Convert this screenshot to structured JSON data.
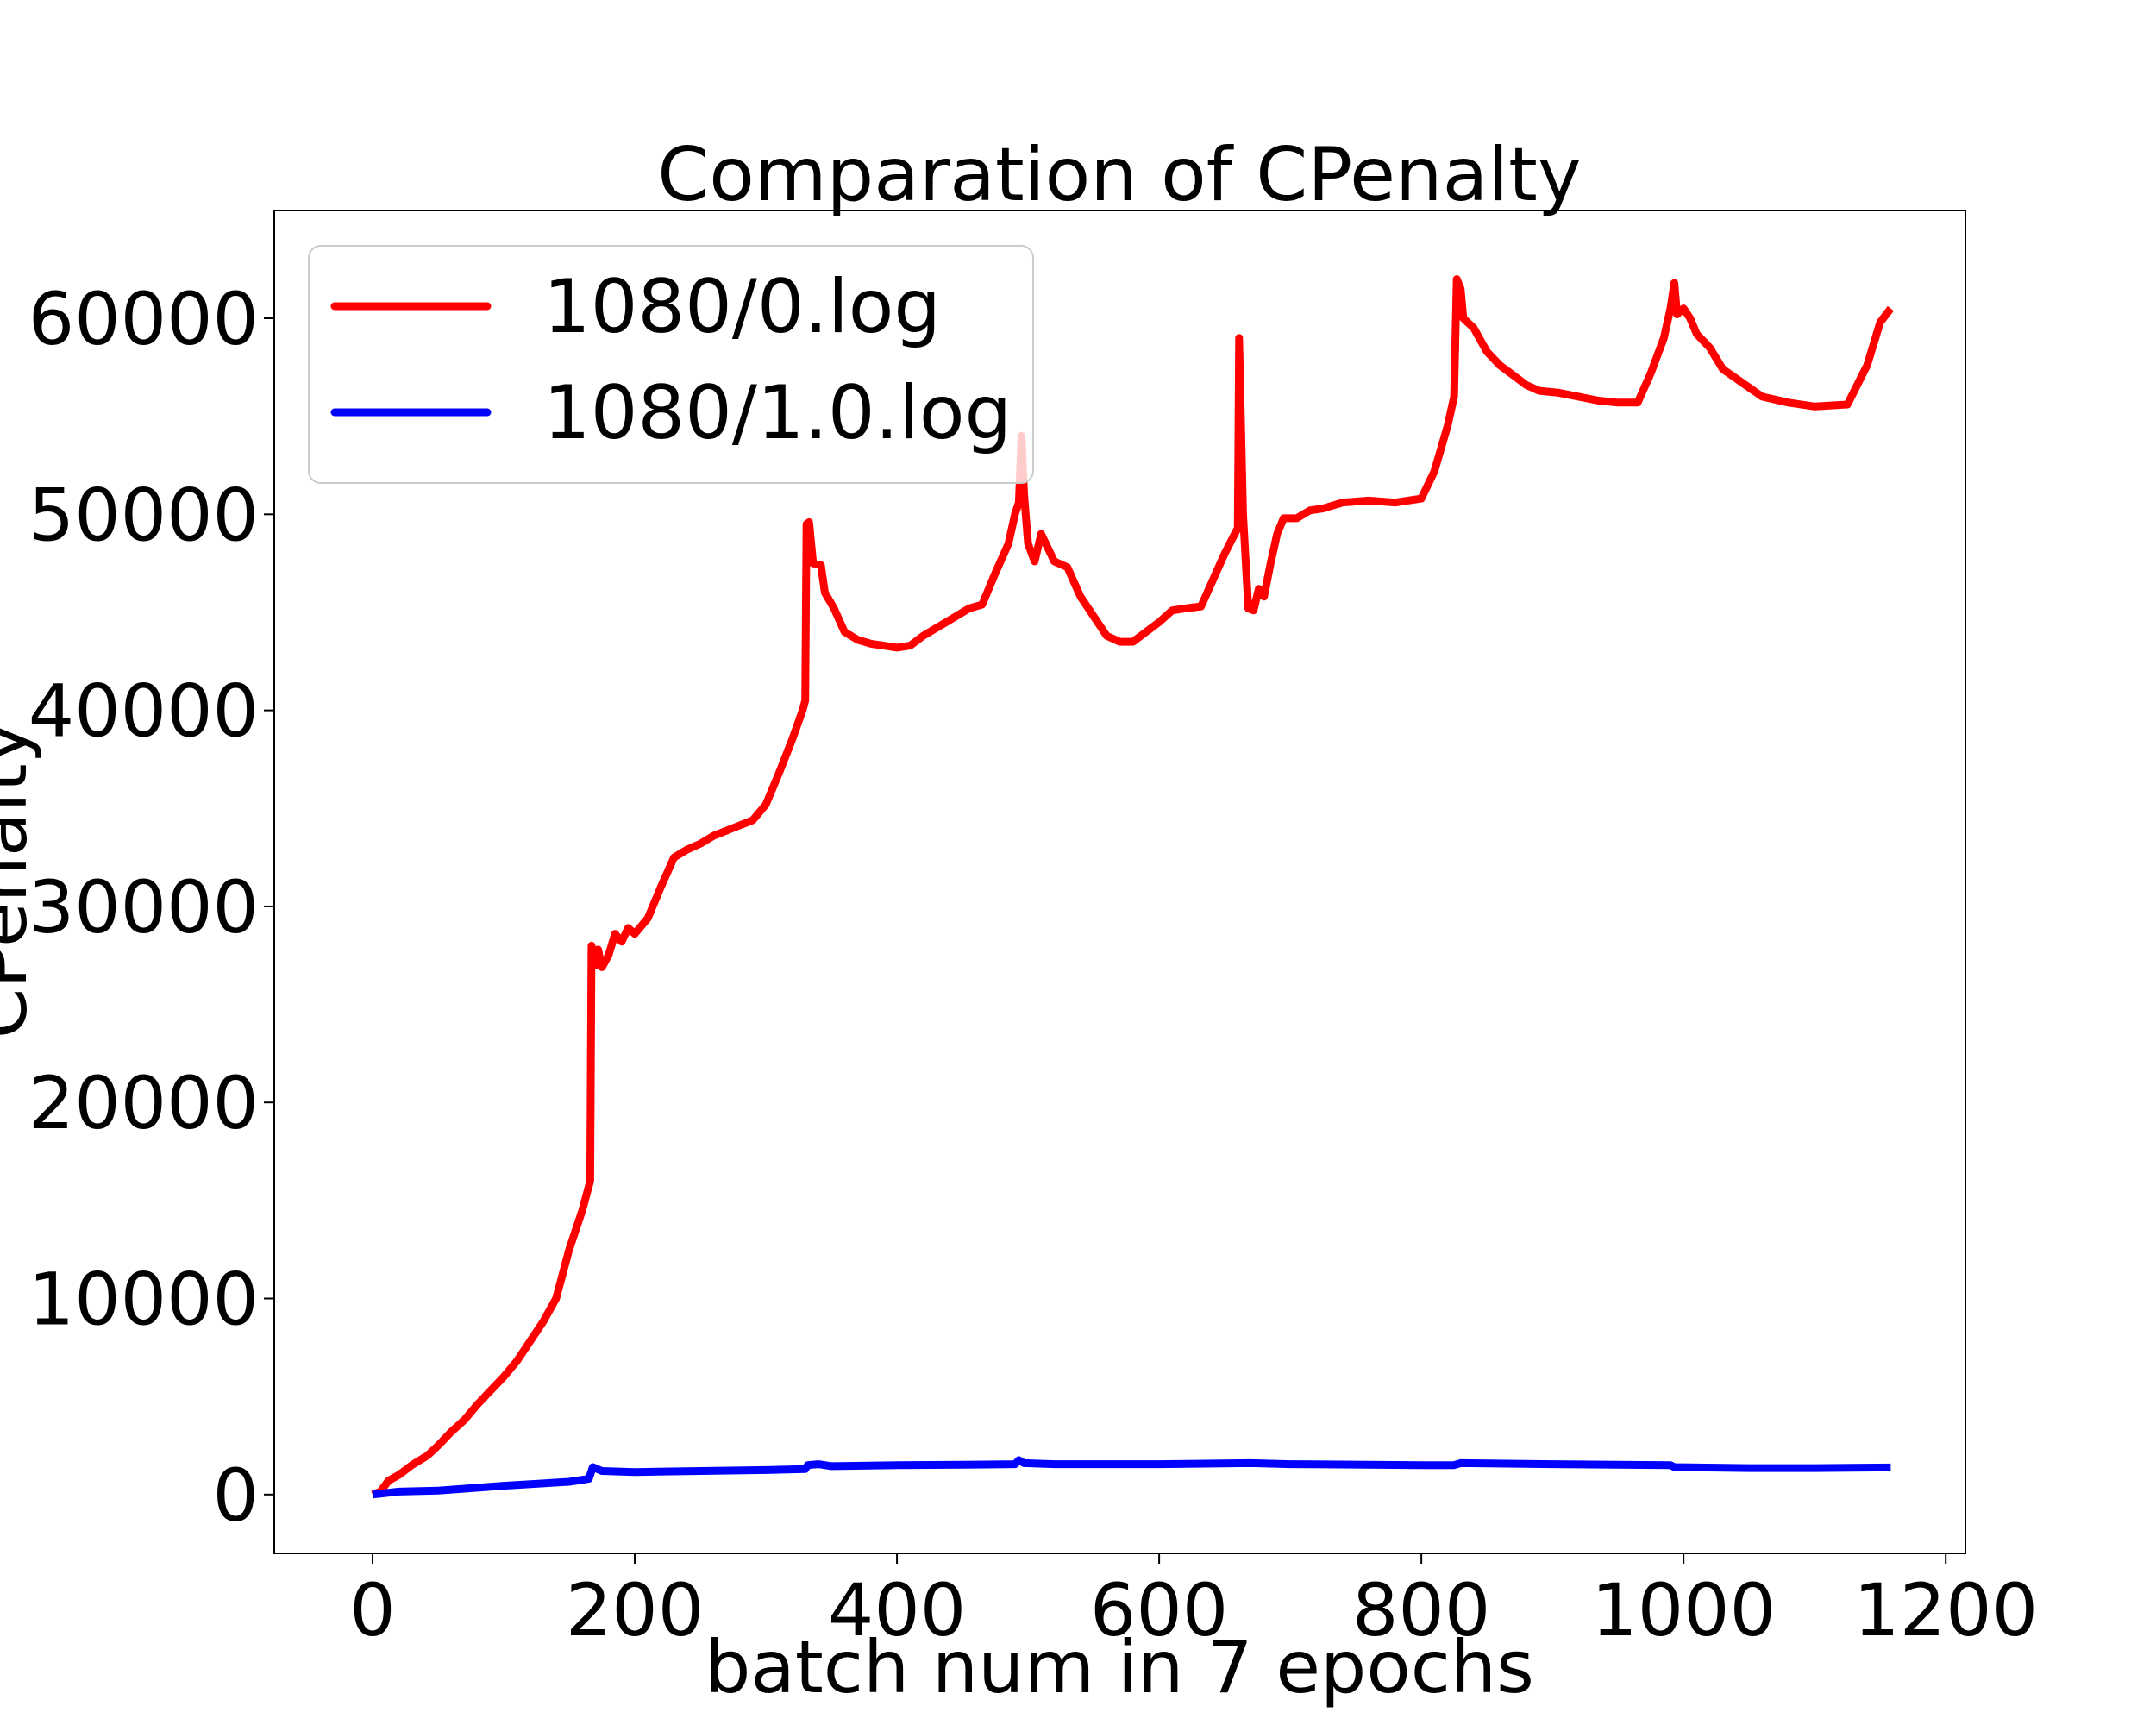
{
  "chart_data": {
    "type": "line",
    "title": "Comparation of CPenalty",
    "xlabel": "batch num in 7 epochs",
    "ylabel": "CPenalty",
    "xlim": [
      -75,
      1215
    ],
    "ylim": [
      -3000,
      65500
    ],
    "xticks": [
      0,
      200,
      400,
      600,
      800,
      1000,
      1200
    ],
    "yticks": [
      0,
      10000,
      20000,
      30000,
      40000,
      50000,
      60000
    ],
    "grid": false,
    "legend_position": "top-left",
    "series": [
      {
        "name": "1080/0.log",
        "color": "#ff0000",
        "points": [
          [
            0,
            0
          ],
          [
            6,
            150
          ],
          [
            12,
            700
          ],
          [
            20,
            1000
          ],
          [
            30,
            1500
          ],
          [
            42,
            2000
          ],
          [
            50,
            2500
          ],
          [
            60,
            3200
          ],
          [
            70,
            3800
          ],
          [
            80,
            4600
          ],
          [
            90,
            5300
          ],
          [
            100,
            6000
          ],
          [
            110,
            6800
          ],
          [
            120,
            7800
          ],
          [
            130,
            8800
          ],
          [
            140,
            10000
          ],
          [
            150,
            12500
          ],
          [
            160,
            14500
          ],
          [
            166,
            16000
          ],
          [
            167,
            28000
          ],
          [
            170,
            27000
          ],
          [
            172,
            27800
          ],
          [
            175,
            26900
          ],
          [
            180,
            27500
          ],
          [
            185,
            28600
          ],
          [
            190,
            28200
          ],
          [
            195,
            28900
          ],
          [
            200,
            28600
          ],
          [
            210,
            29400
          ],
          [
            220,
            31000
          ],
          [
            230,
            32500
          ],
          [
            240,
            32900
          ],
          [
            250,
            33200
          ],
          [
            260,
            33600
          ],
          [
            275,
            34000
          ],
          [
            290,
            34400
          ],
          [
            300,
            35200
          ],
          [
            310,
            36800
          ],
          [
            320,
            38500
          ],
          [
            328,
            40000
          ],
          [
            330,
            40500
          ],
          [
            331,
            49500
          ],
          [
            333,
            49600
          ],
          [
            336,
            47500
          ],
          [
            342,
            47400
          ],
          [
            345,
            46000
          ],
          [
            352,
            45200
          ],
          [
            360,
            44000
          ],
          [
            370,
            43600
          ],
          [
            380,
            43400
          ],
          [
            390,
            43300
          ],
          [
            400,
            43200
          ],
          [
            410,
            43300
          ],
          [
            420,
            43800
          ],
          [
            430,
            44200
          ],
          [
            440,
            44600
          ],
          [
            455,
            45200
          ],
          [
            465,
            45400
          ],
          [
            475,
            47000
          ],
          [
            485,
            48500
          ],
          [
            490,
            50000
          ],
          [
            493,
            50600
          ],
          [
            495,
            54000
          ],
          [
            497,
            51000
          ],
          [
            500,
            48500
          ],
          [
            505,
            47600
          ],
          [
            510,
            49000
          ],
          [
            520,
            47600
          ],
          [
            530,
            47300
          ],
          [
            540,
            45800
          ],
          [
            550,
            44800
          ],
          [
            560,
            43800
          ],
          [
            570,
            43500
          ],
          [
            580,
            43500
          ],
          [
            590,
            44000
          ],
          [
            600,
            44500
          ],
          [
            610,
            45100
          ],
          [
            620,
            45200
          ],
          [
            632,
            45300
          ],
          [
            640,
            46500
          ],
          [
            650,
            48000
          ],
          [
            660,
            49300
          ],
          [
            661,
            59000
          ],
          [
            664,
            50000
          ],
          [
            668,
            45200
          ],
          [
            672,
            45100
          ],
          [
            676,
            46200
          ],
          [
            680,
            45800
          ],
          [
            685,
            47500
          ],
          [
            690,
            49000
          ],
          [
            695,
            49800
          ],
          [
            705,
            49800
          ],
          [
            715,
            50200
          ],
          [
            725,
            50300
          ],
          [
            740,
            50600
          ],
          [
            760,
            50700
          ],
          [
            780,
            50600
          ],
          [
            800,
            50800
          ],
          [
            810,
            52200
          ],
          [
            820,
            54500
          ],
          [
            825,
            56000
          ],
          [
            827,
            62000
          ],
          [
            830,
            61500
          ],
          [
            832,
            60000
          ],
          [
            840,
            59500
          ],
          [
            850,
            58300
          ],
          [
            860,
            57600
          ],
          [
            870,
            57100
          ],
          [
            880,
            56600
          ],
          [
            890,
            56300
          ],
          [
            905,
            56200
          ],
          [
            920,
            56000
          ],
          [
            935,
            55800
          ],
          [
            950,
            55700
          ],
          [
            965,
            55700
          ],
          [
            975,
            57200
          ],
          [
            985,
            59000
          ],
          [
            990,
            60500
          ],
          [
            993,
            61800
          ],
          [
            995,
            60200
          ],
          [
            1000,
            60500
          ],
          [
            1005,
            60000
          ],
          [
            1010,
            59200
          ],
          [
            1020,
            58500
          ],
          [
            1030,
            57400
          ],
          [
            1045,
            56700
          ],
          [
            1060,
            56000
          ],
          [
            1080,
            55700
          ],
          [
            1100,
            55500
          ],
          [
            1125,
            55600
          ],
          [
            1140,
            57600
          ],
          [
            1150,
            59800
          ],
          [
            1158,
            60500
          ]
        ]
      },
      {
        "name": "1080/1.0.log",
        "color": "#0000ff",
        "points": [
          [
            0,
            0
          ],
          [
            20,
            150
          ],
          [
            50,
            200
          ],
          [
            100,
            450
          ],
          [
            150,
            650
          ],
          [
            165,
            800
          ],
          [
            168,
            1400
          ],
          [
            175,
            1200
          ],
          [
            200,
            1150
          ],
          [
            250,
            1200
          ],
          [
            300,
            1250
          ],
          [
            330,
            1300
          ],
          [
            332,
            1500
          ],
          [
            340,
            1550
          ],
          [
            350,
            1450
          ],
          [
            400,
            1500
          ],
          [
            450,
            1520
          ],
          [
            490,
            1550
          ],
          [
            493,
            1750
          ],
          [
            497,
            1600
          ],
          [
            520,
            1550
          ],
          [
            600,
            1550
          ],
          [
            670,
            1600
          ],
          [
            700,
            1550
          ],
          [
            800,
            1500
          ],
          [
            825,
            1500
          ],
          [
            830,
            1600
          ],
          [
            900,
            1550
          ],
          [
            990,
            1500
          ],
          [
            993,
            1400
          ],
          [
            1050,
            1350
          ],
          [
            1100,
            1350
          ],
          [
            1158,
            1380
          ]
        ]
      }
    ]
  }
}
